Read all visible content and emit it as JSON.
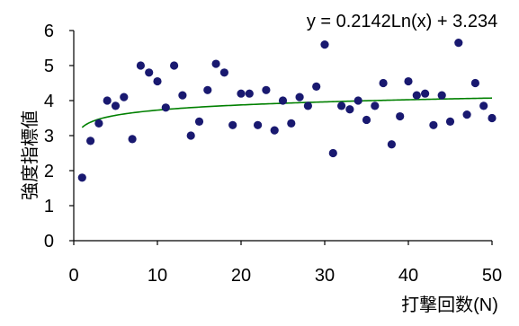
{
  "chart_data": {
    "type": "scatter",
    "title": "",
    "xlabel": "打撃回数(N)",
    "ylabel": "強度指標値",
    "xlim": [
      0,
      50
    ],
    "ylim": [
      0,
      6
    ],
    "xticks": [
      "0",
      "10",
      "20",
      "30",
      "40",
      "50"
    ],
    "yticks": [
      "0",
      "1",
      "2",
      "3",
      "4",
      "5",
      "6"
    ],
    "grid": false,
    "legend": "none",
    "annotation": "y = 0.2142Ln(x) + 3.234",
    "marker_color": "#191970",
    "trend_color": "#008000",
    "trendline": {
      "type": "logarithmic",
      "a": 0.2142,
      "b": 3.234,
      "x_range": [
        1,
        50
      ]
    },
    "series": [
      {
        "x": [
          1,
          2,
          3,
          4,
          5,
          6,
          7,
          8,
          9,
          10,
          11,
          12,
          13,
          14,
          15,
          16,
          17,
          18,
          19,
          20,
          21,
          22,
          23,
          24,
          25,
          26,
          27,
          28,
          29,
          30,
          31,
          32,
          33,
          34,
          35,
          36,
          37,
          38,
          39,
          40,
          41,
          42,
          43,
          44,
          45,
          46,
          47,
          48,
          49,
          50
        ],
        "y": [
          1.8,
          2.85,
          3.35,
          4.0,
          3.85,
          4.1,
          2.9,
          5.0,
          4.8,
          4.55,
          3.8,
          5.0,
          4.15,
          3.0,
          3.4,
          4.3,
          5.05,
          4.8,
          3.3,
          4.2,
          4.2,
          3.3,
          4.3,
          3.15,
          4.0,
          3.35,
          4.1,
          3.85,
          4.4,
          5.6,
          2.5,
          3.85,
          3.75,
          4.0,
          3.45,
          3.85,
          4.5,
          2.75,
          3.55,
          4.55,
          4.15,
          4.2,
          3.3,
          4.15,
          3.4,
          5.65,
          3.6,
          4.5,
          3.85,
          3.5
        ]
      }
    ]
  }
}
